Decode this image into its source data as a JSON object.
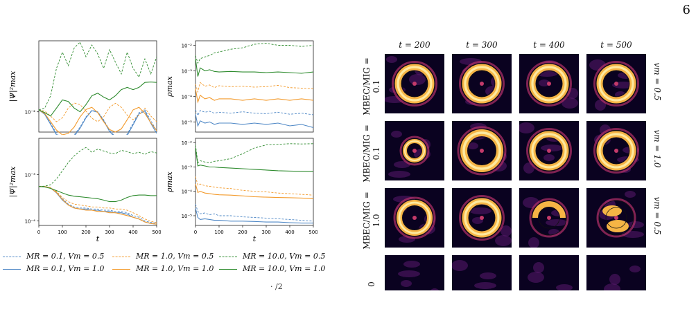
{
  "page_number": "6",
  "line_plots": [
    {
      "id": "top-left",
      "ylabel": "|Ψ|²max",
      "xlabel": "",
      "yscale": "log",
      "yticks": [
        "10⁻²"
      ],
      "xticks": [],
      "ylim": [
        0.006,
        0.06
      ],
      "xlim": [
        0,
        500
      ],
      "ytick_values": [
        0.01
      ]
    },
    {
      "id": "top-right",
      "ylabel": "ρmax",
      "xlabel": "",
      "yscale": "log",
      "yticks": [
        "10⁻²",
        "10⁻³",
        "10⁻⁴",
        "10⁻⁵"
      ],
      "xticks": [],
      "ylim": [
        4e-06,
        0.015
      ],
      "xlim": [
        0,
        500
      ],
      "ytick_values": [
        0.01,
        0.001,
        0.0001,
        1e-05
      ]
    },
    {
      "id": "bottom-left",
      "ylabel": "|Ψ|²max",
      "xlabel": "t",
      "yscale": "log",
      "yticks": [
        "10⁻³",
        "10⁻⁴"
      ],
      "xticks": [
        "0",
        "100",
        "200",
        "300",
        "400",
        "500"
      ],
      "ylim": [
        8e-05,
        0.006
      ],
      "xlim": [
        0,
        500
      ],
      "ytick_values": [
        0.001,
        0.0001
      ]
    },
    {
      "id": "bottom-right",
      "ylabel": "ρmax",
      "xlabel": "t",
      "yscale": "log",
      "yticks": [
        "10⁻²",
        "10⁻³",
        "10⁻⁴",
        "10⁻⁵"
      ],
      "xticks": [
        "0",
        "100",
        "200",
        "300",
        "400",
        "500"
      ],
      "ylim": [
        4e-06,
        0.015
      ],
      "xlim": [
        0,
        500
      ],
      "ytick_values": [
        0.01,
        0.001,
        0.0001,
        1e-05
      ]
    }
  ],
  "chart_data": [
    {
      "type": "line",
      "panel": "top-left",
      "x": [
        0,
        25,
        50,
        75,
        100,
        125,
        150,
        175,
        200,
        225,
        250,
        275,
        300,
        325,
        350,
        375,
        400,
        425,
        450,
        475,
        500
      ],
      "series": [
        {
          "name": "MR = 0.1,  Vm = 0.5",
          "color": "#4f88c6",
          "dash": true,
          "values": [
            0.0105,
            0.0095,
            0.0075,
            0.0058,
            0.005,
            0.005,
            0.0056,
            0.0068,
            0.0088,
            0.0104,
            0.01,
            0.0082,
            0.0063,
            0.0053,
            0.0051,
            0.0057,
            0.0075,
            0.0098,
            0.0105,
            0.008,
            0.0062
          ]
        },
        {
          "name": "MR = 0.1,  Vm = 1.0",
          "color": "#4f88c6",
          "dash": false,
          "values": [
            0.0105,
            0.0094,
            0.0073,
            0.0056,
            0.0049,
            0.0049,
            0.0054,
            0.0066,
            0.0086,
            0.0103,
            0.0099,
            0.008,
            0.0061,
            0.0052,
            0.005,
            0.0055,
            0.0072,
            0.0095,
            0.0102,
            0.0075,
            0.0058
          ]
        },
        {
          "name": "MR = 1.0,  Vm = 0.5",
          "color": "#f39a2b",
          "dash": true,
          "values": [
            0.0105,
            0.0102,
            0.009,
            0.0078,
            0.0086,
            0.011,
            0.0125,
            0.012,
            0.0102,
            0.0085,
            0.0078,
            0.0088,
            0.0112,
            0.0124,
            0.0112,
            0.0092,
            0.0082,
            0.0092,
            0.011,
            0.009,
            0.0078
          ]
        },
        {
          "name": "MR = 1.0,  Vm = 1.0",
          "color": "#f39a2b",
          "dash": false,
          "values": [
            0.0105,
            0.0096,
            0.0078,
            0.0063,
            0.0056,
            0.0058,
            0.0068,
            0.0088,
            0.0106,
            0.0112,
            0.0098,
            0.0078,
            0.0064,
            0.006,
            0.0065,
            0.0082,
            0.0105,
            0.0112,
            0.0096,
            0.0076,
            0.0062
          ]
        },
        {
          "name": "MR = 10.0,  Vm = 0.5",
          "color": "#2e8b2e",
          "dash": true,
          "values": [
            0.0105,
            0.011,
            0.015,
            0.03,
            0.045,
            0.032,
            0.05,
            0.058,
            0.04,
            0.054,
            0.043,
            0.03,
            0.048,
            0.035,
            0.026,
            0.045,
            0.03,
            0.024,
            0.038,
            0.026,
            0.04
          ]
        },
        {
          "name": "MR = 10.0,  Vm = 1.0",
          "color": "#2e8b2e",
          "dash": false,
          "values": [
            0.0105,
            0.0098,
            0.009,
            0.011,
            0.0135,
            0.013,
            0.011,
            0.01,
            0.012,
            0.015,
            0.016,
            0.0145,
            0.0135,
            0.015,
            0.0175,
            0.0185,
            0.0175,
            0.0185,
            0.021,
            0.0212,
            0.021
          ]
        }
      ]
    },
    {
      "type": "line",
      "panel": "top-right",
      "x": [
        0,
        10,
        20,
        40,
        60,
        80,
        100,
        150,
        200,
        250,
        300,
        350,
        400,
        450,
        500
      ],
      "series": [
        {
          "name": "MR = 0.1,  Vm = 0.5",
          "color": "#4f88c6",
          "dash": true,
          "values": [
            3e-05,
            1.8e-05,
            2.8e-05,
            2.4e-05,
            2.6e-05,
            2.2e-05,
            2.4e-05,
            2.2e-05,
            2.5e-05,
            2.2e-05,
            2.1e-05,
            2.4e-05,
            2e-05,
            2.2e-05,
            1.9e-05
          ]
        },
        {
          "name": "MR = 0.1,  Vm = 1.0",
          "color": "#4f88c6",
          "dash": false,
          "values": [
            2e-05,
            7e-06,
            1.1e-05,
            9e-06,
            1e-05,
            8e-06,
            9e-06,
            9e-06,
            8e-06,
            9e-06,
            8e-06,
            9e-06,
            7e-06,
            8e-06,
            6e-06
          ]
        },
        {
          "name": "MR = 1.0,  Vm = 0.5",
          "color": "#f39a2b",
          "dash": true,
          "values": [
            0.0003,
            0.00015,
            0.00035,
            0.00025,
            0.00028,
            0.00022,
            0.00026,
            0.00024,
            0.00025,
            0.00023,
            0.00024,
            0.00027,
            0.00022,
            0.00021,
            0.0002
          ]
        },
        {
          "name": "MR = 1.0,  Vm = 1.0",
          "color": "#f39a2b",
          "dash": false,
          "values": [
            0.0002,
            6e-05,
            0.00011,
            8e-05,
            9e-05,
            7e-05,
            8e-05,
            8e-05,
            7e-05,
            8e-05,
            7e-05,
            8e-05,
            7e-05,
            8e-05,
            7e-05
          ]
        },
        {
          "name": "MR = 10.0,  Vm = 0.5",
          "color": "#2e8b2e",
          "dash": true,
          "values": [
            0.004,
            0.002,
            0.003,
            0.0035,
            0.004,
            0.005,
            0.0055,
            0.007,
            0.008,
            0.011,
            0.012,
            0.01,
            0.01,
            0.009,
            0.01
          ]
        },
        {
          "name": "MR = 10.0,  Vm = 1.0",
          "color": "#2e8b2e",
          "dash": false,
          "values": [
            0.003,
            0.0006,
            0.0013,
            0.001,
            0.0011,
            0.00095,
            0.0009,
            0.00095,
            0.0009,
            0.0009,
            0.00085,
            0.0009,
            0.00085,
            0.0008,
            0.0009
          ]
        }
      ]
    },
    {
      "type": "line",
      "panel": "bottom-left",
      "x": [
        0,
        25,
        50,
        75,
        100,
        125,
        150,
        175,
        200,
        225,
        250,
        275,
        300,
        325,
        350,
        375,
        400,
        425,
        450,
        475,
        500
      ],
      "series": [
        {
          "name": "MR = 0.1,  Vm = 0.5",
          "color": "#4f88c6",
          "dash": true,
          "values": [
            0.00055,
            0.00055,
            0.00052,
            0.00042,
            0.0003,
            0.00023,
            0.0002,
            0.00019,
            0.00019,
            0.00018,
            0.00018,
            0.00017,
            0.00017,
            0.00016,
            0.00016,
            0.00015,
            0.00013,
            0.00012,
            0.0001,
            9.3e-05,
            9e-05
          ]
        },
        {
          "name": "MR = 0.1,  Vm = 1.0",
          "color": "#4f88c6",
          "dash": false,
          "values": [
            0.00055,
            0.00055,
            0.00051,
            0.0004,
            0.00028,
            0.00022,
            0.00019,
            0.00018,
            0.00018,
            0.00017,
            0.00017,
            0.00016,
            0.00016,
            0.00015,
            0.00015,
            0.00014,
            0.00012,
            0.00011,
            9.5e-05,
            8.8e-05,
            8.5e-05
          ]
        },
        {
          "name": "MR = 1.0,  Vm = 0.5",
          "color": "#f39a2b",
          "dash": true,
          "values": [
            0.00055,
            0.00055,
            0.00052,
            0.00043,
            0.00032,
            0.00026,
            0.00023,
            0.00022,
            0.00021,
            0.0002,
            0.0002,
            0.00019,
            0.00019,
            0.00018,
            0.00018,
            0.00017,
            0.00015,
            0.00013,
            0.00011,
            9.8e-05,
            9.2e-05
          ]
        },
        {
          "name": "MR = 1.0,  Vm = 1.0",
          "color": "#f39a2b",
          "dash": false,
          "values": [
            0.00055,
            0.00055,
            0.00051,
            0.00041,
            0.00029,
            0.00022,
            0.00019,
            0.00018,
            0.00017,
            0.00017,
            0.00016,
            0.00016,
            0.00015,
            0.00015,
            0.00014,
            0.00013,
            0.00012,
            0.00011,
            9.5e-05,
            8.8e-05,
            8.5e-05
          ]
        },
        {
          "name": "MR = 10.0,  Vm = 0.5",
          "color": "#2e8b2e",
          "dash": true,
          "values": [
            0.00055,
            0.00056,
            0.0006,
            0.0008,
            0.0012,
            0.0018,
            0.0025,
            0.0032,
            0.0038,
            0.003,
            0.0035,
            0.0032,
            0.0029,
            0.0028,
            0.0033,
            0.0031,
            0.0028,
            0.003,
            0.0027,
            0.0031,
            0.0029
          ]
        },
        {
          "name": "MR = 10.0,  Vm = 1.0",
          "color": "#2e8b2e",
          "dash": false,
          "values": [
            0.00055,
            0.00054,
            0.0005,
            0.00045,
            0.0004,
            0.00036,
            0.00034,
            0.00033,
            0.00032,
            0.00031,
            0.0003,
            0.00028,
            0.00026,
            0.00026,
            0.00028,
            0.00032,
            0.00035,
            0.00036,
            0.00036,
            0.00035,
            0.00035
          ]
        }
      ]
    },
    {
      "type": "line",
      "panel": "bottom-right",
      "x": [
        0,
        10,
        20,
        40,
        60,
        80,
        100,
        150,
        200,
        250,
        300,
        350,
        400,
        450,
        500
      ],
      "series": [
        {
          "name": "MR = 0.1,  Vm = 0.5",
          "color": "#4f88c6",
          "dash": true,
          "values": [
            3e-05,
            1.5e-05,
            1.2e-05,
            1.3e-05,
            1.1e-05,
            1.2e-05,
            1e-05,
            1e-05,
            9e-06,
            8.5e-06,
            8e-06,
            7.5e-06,
            7e-06,
            6.5e-06,
            6e-06
          ]
        },
        {
          "name": "MR = 0.1,  Vm = 1.0",
          "color": "#4f88c6",
          "dash": false,
          "values": [
            2e-05,
            8.5e-06,
            7e-06,
            7.5e-06,
            7e-06,
            6.5e-06,
            6.5e-06,
            6e-06,
            6e-06,
            5.8e-06,
            5.5e-06,
            5.5e-06,
            5.2e-06,
            5e-06,
            5e-06
          ]
        },
        {
          "name": "MR = 1.0,  Vm = 0.5",
          "color": "#f39a2b",
          "dash": true,
          "values": [
            0.0004,
            0.00018,
            0.0002,
            0.00017,
            0.00016,
            0.00015,
            0.00014,
            0.00013,
            0.00011,
            0.0001,
            9.5e-05,
            8.5e-05,
            8e-05,
            7.5e-05,
            7e-05
          ]
        },
        {
          "name": "MR = 1.0,  Vm = 1.0",
          "color": "#f39a2b",
          "dash": false,
          "values": [
            0.0002,
            9e-05,
            0.0001,
            8.5e-05,
            8e-05,
            7.5e-05,
            7.2e-05,
            7e-05,
            6.5e-05,
            6e-05,
            5.8e-05,
            5.6e-05,
            5.5e-05,
            5.3e-05,
            5e-05
          ]
        },
        {
          "name": "MR = 10.0,  Vm = 0.5",
          "color": "#2e8b2e",
          "dash": true,
          "values": [
            0.008,
            0.0015,
            0.0018,
            0.0016,
            0.0015,
            0.0017,
            0.0018,
            0.0022,
            0.0035,
            0.006,
            0.008,
            0.0085,
            0.009,
            0.0088,
            0.009
          ]
        },
        {
          "name": "MR = 10.0,  Vm = 1.0",
          "color": "#2e8b2e",
          "dash": false,
          "values": [
            0.006,
            0.0011,
            0.0012,
            0.0011,
            0.001,
            0.001,
            0.00095,
            0.0009,
            0.00085,
            0.0008,
            0.00075,
            0.0007,
            0.00068,
            0.00066,
            0.00065
          ]
        }
      ]
    }
  ],
  "legend": [
    {
      "label": "MR = 0.1,  Vm = 0.5",
      "color": "#4f88c6",
      "dash": true
    },
    {
      "label": "MR = 0.1,  Vm = 1.0",
      "color": "#4f88c6",
      "dash": false
    },
    {
      "label": "MR = 1.0,  Vm = 0.5",
      "color": "#f39a2b",
      "dash": true
    },
    {
      "label": "MR = 1.0,  Vm = 1.0",
      "color": "#f39a2b",
      "dash": false
    },
    {
      "label": "MR = 10.0,  Vm = 0.5",
      "color": "#2e8b2e",
      "dash": true
    },
    {
      "label": "MR = 10.0,  Vm = 1.0",
      "color": "#2e8b2e",
      "dash": false
    }
  ],
  "grid": {
    "columns": [
      "t = 200",
      "t = 300",
      "t = 400",
      "t = 500"
    ],
    "rows": [
      {
        "left": "MBEC/MIG = 0.1",
        "right": "vm = 0.5"
      },
      {
        "left": "MBEC/MIG = 0.1",
        "right": "vm = 1.0"
      },
      {
        "left": "MBEC/MIG = 1.0",
        "right": "vm = 0.5"
      }
    ],
    "partial_row_label": "0"
  },
  "footer_fragment": "· /2"
}
